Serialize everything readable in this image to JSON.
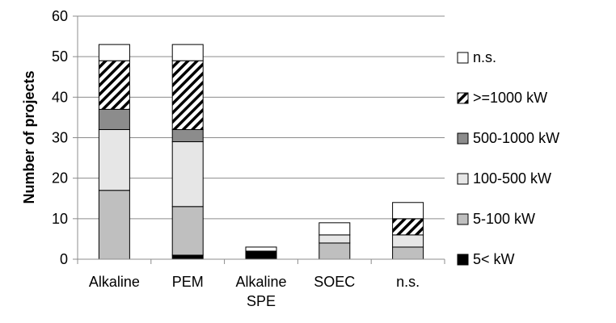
{
  "chart_data": {
    "type": "bar",
    "stacked": true,
    "title": "",
    "xlabel": "",
    "ylabel": "Number of projects",
    "ylim": [
      0,
      60
    ],
    "yticks": [
      0,
      10,
      20,
      30,
      40,
      50,
      60
    ],
    "grid": "horizontal",
    "legend_position": "right",
    "categories": [
      {
        "lines": [
          "Alkaline"
        ]
      },
      {
        "lines": [
          "PEM"
        ]
      },
      {
        "lines": [
          "Alkaline",
          "SPE"
        ]
      },
      {
        "lines": [
          "SOEC"
        ]
      },
      {
        "lines": [
          "n.s."
        ]
      }
    ],
    "series": [
      {
        "name": "5< kW",
        "fill": "#000000",
        "pattern": "solid",
        "values": [
          0,
          1,
          2,
          0,
          0
        ]
      },
      {
        "name": "5-100 kW",
        "fill": "#bfbfbf",
        "pattern": "solid",
        "values": [
          17,
          12,
          0,
          4,
          3
        ]
      },
      {
        "name": "100-500 kW",
        "fill": "#e6e6e6",
        "pattern": "solid",
        "values": [
          15,
          16,
          0,
          2,
          3
        ]
      },
      {
        "name": "500-1000 kW",
        "fill": "#8c8c8c",
        "pattern": "solid",
        "values": [
          5,
          3,
          0,
          0,
          0
        ]
      },
      {
        "name": ">=1000 kW",
        "fill": "#ffffff",
        "pattern": "diagonal-hatch",
        "values": [
          12,
          17,
          0,
          0,
          4
        ]
      },
      {
        "name": "n.s.",
        "fill": "#ffffff",
        "pattern": "solid",
        "values": [
          4,
          4,
          1,
          3,
          4
        ]
      }
    ],
    "legend_order": [
      "n.s.",
      ">=1000 kW",
      "500-1000 kW",
      "100-500 kW",
      "5-100 kW",
      "5< kW"
    ]
  }
}
